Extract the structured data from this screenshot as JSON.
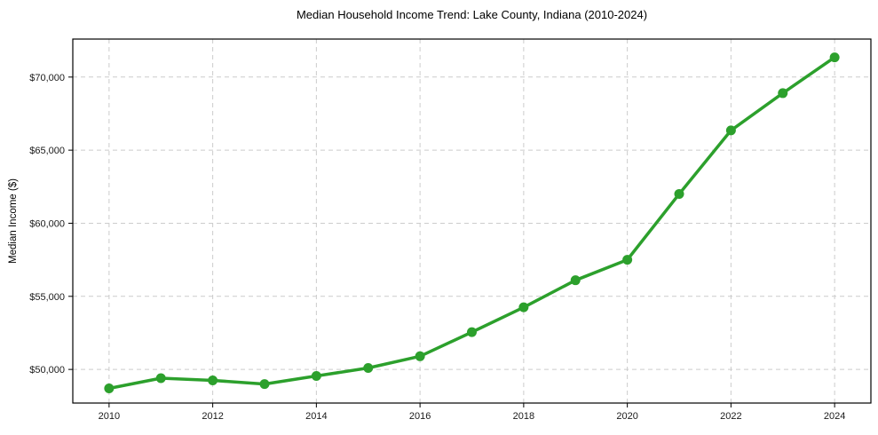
{
  "chart_data": {
    "type": "line",
    "title": "Median Household Income Trend: Lake County, Indiana (2010-2024)",
    "xlabel": "",
    "ylabel": "Median Income ($)",
    "x": [
      2010,
      2011,
      2012,
      2013,
      2014,
      2015,
      2016,
      2017,
      2018,
      2019,
      2020,
      2021,
      2022,
      2023,
      2024
    ],
    "values": [
      48700,
      49400,
      49250,
      49000,
      49550,
      50100,
      50900,
      52550,
      54250,
      56100,
      57500,
      62000,
      66350,
      68900,
      71350
    ],
    "series_name": "median-household-income",
    "xlim": [
      2009.3,
      2024.7
    ],
    "ylim": [
      47700,
      72600
    ],
    "x_ticks": [
      2010,
      2012,
      2014,
      2016,
      2018,
      2020,
      2022,
      2024
    ],
    "y_ticks": [
      50000,
      55000,
      60000,
      65000,
      70000
    ],
    "y_tick_labels": [
      "$50,000",
      "$55,000",
      "$60,000",
      "$65,000",
      "$70,000"
    ],
    "grid": true,
    "grid_style": "dashed",
    "legend": "none",
    "line_color": "#2ca02c",
    "marker": "circle",
    "grid_color": "#cccccc",
    "spine_color": "#000000",
    "text_color": "#1a1a1a",
    "background": "#ffffff"
  }
}
